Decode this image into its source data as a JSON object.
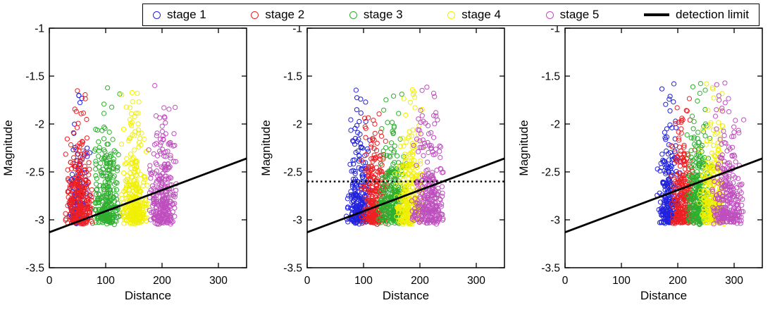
{
  "legend": {
    "items": [
      {
        "label": "stage 1",
        "color": "#2222DD",
        "type": "circle"
      },
      {
        "label": "stage 2",
        "color": "#ED2024",
        "type": "circle"
      },
      {
        "label": "stage 3",
        "color": "#2FAF2F",
        "type": "circle"
      },
      {
        "label": "stage 4",
        "color": "#F0F000",
        "type": "circle"
      },
      {
        "label": "stage 5",
        "color": "#BE4FBE",
        "type": "circle"
      },
      {
        "label": "detection limit",
        "color": "#000000",
        "type": "line"
      }
    ]
  },
  "chart_data": [
    {
      "type": "scatter",
      "title": "",
      "xlabel": "Distance",
      "ylabel": "Magnitude",
      "xlim": [
        0,
        350
      ],
      "ylim": [
        -3.5,
        -1
      ],
      "xticks": [
        0,
        100,
        200,
        300
      ],
      "xtick_labels": [
        "0",
        "100",
        "200",
        "300"
      ],
      "yticks": [
        -1,
        -1.5,
        -2,
        -2.5,
        -3,
        -3.5
      ],
      "ytick_labels": [
        "-1",
        "-1.5",
        "-2",
        "-2.5",
        "-3",
        "-3.5"
      ],
      "grid": false,
      "detection_limit": {
        "x": [
          0,
          350
        ],
        "y": [
          -3.13,
          -2.36
        ]
      },
      "dotted_line_y": null,
      "mag": {
        "floor": -3.02,
        "b": 1.25,
        "max": -1.55
      },
      "series": [
        {
          "name": "stage 1",
          "color": "#2222DD",
          "x_range": [
            30,
            76
          ],
          "count": 140
        },
        {
          "name": "stage 2",
          "color": "#ED2024",
          "x_range": [
            27,
            80
          ],
          "count": 290
        },
        {
          "name": "stage 3",
          "color": "#2FAF2F",
          "x_range": [
            77,
            128
          ],
          "count": 280
        },
        {
          "name": "stage 4",
          "color": "#F0F000",
          "x_range": [
            125,
            178
          ],
          "count": 280
        },
        {
          "name": "stage 5",
          "color": "#BE4FBE",
          "x_range": [
            174,
            228
          ],
          "count": 280
        }
      ]
    },
    {
      "type": "scatter",
      "title": "",
      "xlabel": "Distance",
      "ylabel": "Magnitude",
      "xlim": [
        0,
        350
      ],
      "ylim": [
        -3.5,
        -1
      ],
      "xticks": [
        0,
        100,
        200,
        300
      ],
      "xtick_labels": [
        "0",
        "100",
        "200",
        "300"
      ],
      "yticks": [
        -1,
        -1.5,
        -2,
        -2.5,
        -3,
        -3.5
      ],
      "ytick_labels": [
        "-1",
        "-1.5",
        "-2",
        "-2.5",
        "-3",
        "-3.5"
      ],
      "grid": false,
      "detection_limit": {
        "x": [
          0,
          350
        ],
        "y": [
          -3.13,
          -2.36
        ]
      },
      "dotted_line_y": -2.6,
      "mag": {
        "floor": -3.02,
        "b": 1.25,
        "max": -1.55
      },
      "series": [
        {
          "name": "stage 1",
          "color": "#2222DD",
          "x_range": [
            68,
            115
          ],
          "count": 260
        },
        {
          "name": "stage 2",
          "color": "#ED2024",
          "x_range": [
            95,
            145
          ],
          "count": 270
        },
        {
          "name": "stage 3",
          "color": "#2FAF2F",
          "x_range": [
            124,
            178
          ],
          "count": 280
        },
        {
          "name": "stage 4",
          "color": "#F0F000",
          "x_range": [
            154,
            208
          ],
          "count": 280
        },
        {
          "name": "stage 5",
          "color": "#BE4FBE",
          "x_range": [
            184,
            245
          ],
          "count": 280
        }
      ]
    },
    {
      "type": "scatter",
      "title": "",
      "xlabel": "Distance",
      "ylabel": "Magnitude",
      "xlim": [
        0,
        350
      ],
      "ylim": [
        -3.5,
        -1
      ],
      "xticks": [
        0,
        100,
        200,
        300
      ],
      "xtick_labels": [
        "0",
        "100",
        "200",
        "300"
      ],
      "yticks": [
        -1,
        -1.5,
        -2,
        -2.5,
        -3,
        -3.5
      ],
      "ytick_labels": [
        "-1",
        "-1.5",
        "-2",
        "-2.5",
        "-3",
        "-3.5"
      ],
      "grid": false,
      "detection_limit": {
        "x": [
          0,
          350
        ],
        "y": [
          -3.13,
          -2.36
        ]
      },
      "dotted_line_y": null,
      "mag": {
        "floor": -3.02,
        "b": 1.25,
        "max": -1.55
      },
      "series": [
        {
          "name": "stage 1",
          "color": "#2222DD",
          "x_range": [
            162,
            206
          ],
          "count": 250
        },
        {
          "name": "stage 2",
          "color": "#ED2024",
          "x_range": [
            187,
            233
          ],
          "count": 260
        },
        {
          "name": "stage 3",
          "color": "#2FAF2F",
          "x_range": [
            212,
            262
          ],
          "count": 270
        },
        {
          "name": "stage 4",
          "color": "#F0F000",
          "x_range": [
            237,
            288
          ],
          "count": 270
        },
        {
          "name": "stage 5",
          "color": "#BE4FBE",
          "x_range": [
            257,
            318
          ],
          "count": 280
        }
      ]
    }
  ]
}
